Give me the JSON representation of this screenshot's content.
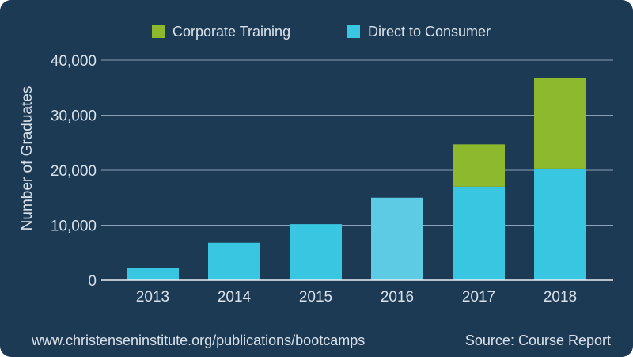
{
  "chart_data": {
    "type": "bar",
    "stacked": true,
    "categories": [
      "2013",
      "2014",
      "2015",
      "2016",
      "2017",
      "2018"
    ],
    "series": [
      {
        "name": "Direct to Consumer",
        "color": "#38c6e0",
        "values": [
          2200,
          6800,
          10200,
          15000,
          17000,
          20300
        ]
      },
      {
        "name": "Corporate Training",
        "color": "#8db92e",
        "values": [
          0,
          0,
          0,
          0,
          7700,
          16400
        ]
      }
    ],
    "ylabel": "Number of Graduates",
    "yticks": [
      0,
      10000,
      20000,
      30000,
      40000
    ],
    "ytick_labels": [
      "0",
      "10,000",
      "20,000",
      "30,000",
      "40,000"
    ],
    "ylim": [
      0,
      40000
    ],
    "grid": true,
    "legend_position": "top",
    "legend_order": [
      "Corporate Training",
      "Direct to Consumer"
    ],
    "highlight_category": "2016",
    "highlight_color": "#5ccbe3"
  },
  "footer": {
    "url": "www.christenseninstitute.org/publications/bootcamps",
    "source": "Source: Course Report"
  },
  "colors": {
    "background": "#1d3a55",
    "grid": "#8aa0b5",
    "text": "#d9e2ea"
  }
}
